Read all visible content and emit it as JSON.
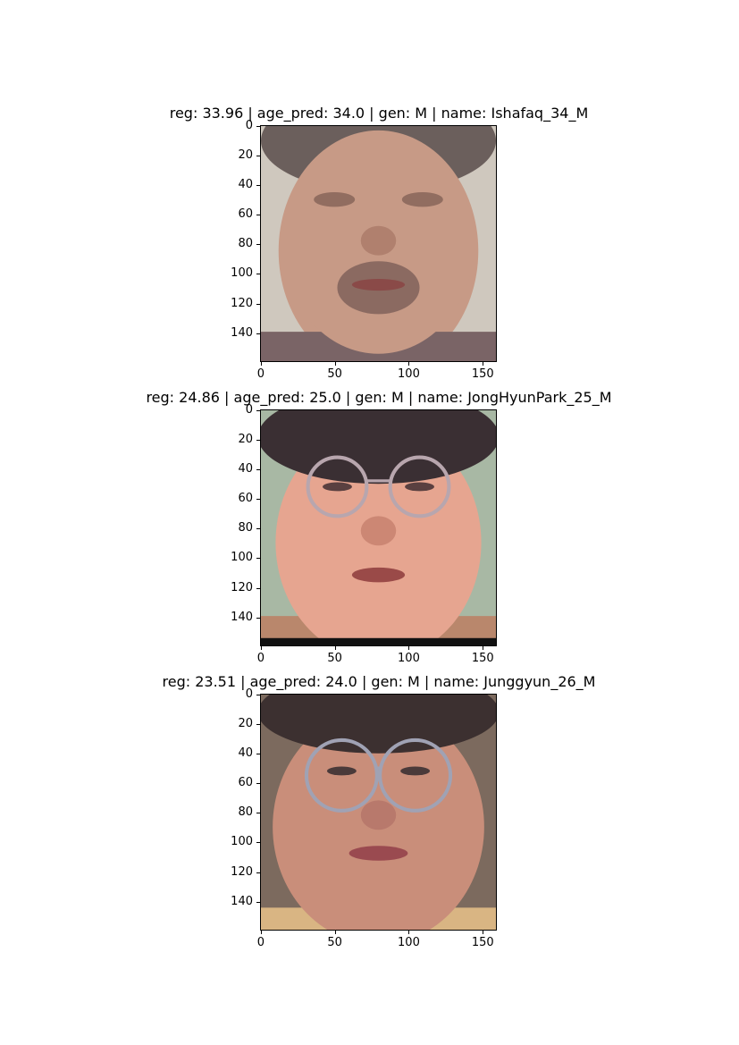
{
  "panels": [
    {
      "title": "reg: 33.96 | age_pred: 34.0 | gen: M | name: Ishafaq_34_M",
      "skin": "#c79a86",
      "hair": "#6b5f5c",
      "bg": "#cfc8be",
      "shirt": "#7a6466",
      "glasses": false,
      "beard": true
    },
    {
      "title": "reg: 24.86 | age_pred: 25.0 | gen: M | name: JongHyunPark_25_M",
      "skin": "#e6a590",
      "hair": "#3a2f33",
      "bg": "#a8b8a4",
      "shirt": "#b9876c",
      "glasses": true,
      "beard": false
    },
    {
      "title": "reg: 23.51 | age_pred: 24.0 | gen: M | name: Junggyun_26_M",
      "skin": "#c98e7a",
      "hair": "#3c3030",
      "bg": "#7c6a5e",
      "shirt": "#d9b583",
      "glasses": true,
      "beard": false
    }
  ],
  "y_ticks": [
    "0",
    "20",
    "40",
    "60",
    "80",
    "100",
    "120",
    "140"
  ],
  "x_ticks": [
    "0",
    "50",
    "100",
    "150"
  ]
}
